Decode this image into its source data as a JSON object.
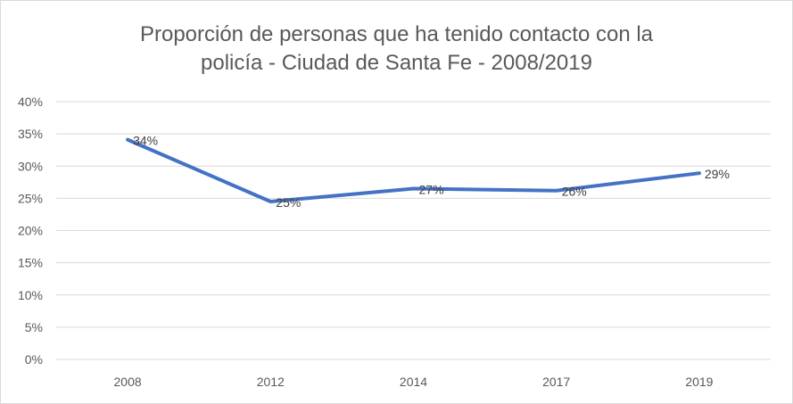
{
  "chart_data": {
    "type": "line",
    "title_lines": [
      "Proporción de personas que ha tenido contacto con la",
      "policía - Ciudad de Santa Fe - 2008/2019"
    ],
    "categories": [
      "2008",
      "2012",
      "2014",
      "2017",
      "2019"
    ],
    "series": [
      {
        "values": [
          34.1,
          24.5,
          26.5,
          26.2,
          28.9
        ],
        "data_labels": [
          "34%",
          "25%",
          "27%",
          "26%",
          "29%"
        ],
        "color": "#4472c4"
      }
    ],
    "ylim": [
      0,
      40
    ],
    "yticks": [
      0,
      5,
      10,
      15,
      20,
      25,
      30,
      35,
      40
    ],
    "ytick_labels": [
      "0%",
      "5%",
      "10%",
      "15%",
      "20%",
      "25%",
      "30%",
      "35%",
      "40%"
    ],
    "grid": true,
    "legend": "none"
  }
}
